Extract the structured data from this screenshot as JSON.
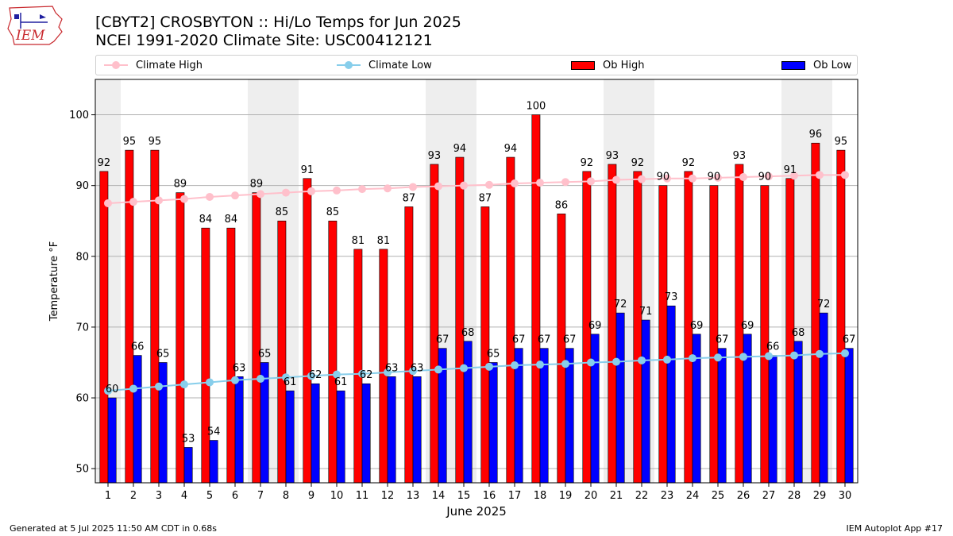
{
  "header": {
    "title_line1": "[CBYT2] CROSBYTON :: Hi/Lo Temps for Jun 2025",
    "title_line2": "NCEI 1991-2020 Climate Site: USC00412121"
  },
  "logo": {
    "text": "IEM",
    "icon": "iem-logo-icon"
  },
  "footer": {
    "left": "Generated at 5 Jul 2025 11:50 AM CDT in 0.68s",
    "right": "IEM Autoplot App #17"
  },
  "colors": {
    "ob_high": "#ff0000",
    "ob_low": "#0000ff",
    "climate_high": "#ffc0cb",
    "climate_low": "#87ceeb",
    "weekend_shade": "#eeeeee",
    "grid": "#b0b0b0"
  },
  "chart_data": {
    "type": "bar",
    "xlabel": "June 2025",
    "ylabel": "Temperature °F",
    "ylim": [
      48,
      105
    ],
    "yticks": [
      50,
      60,
      70,
      80,
      90,
      100
    ],
    "grid": "horizontal",
    "legend_placement": "top",
    "categories": [
      "1",
      "2",
      "3",
      "4",
      "5",
      "6",
      "7",
      "8",
      "9",
      "10",
      "11",
      "12",
      "13",
      "14",
      "15",
      "16",
      "17",
      "18",
      "19",
      "20",
      "21",
      "22",
      "23",
      "24",
      "25",
      "26",
      "27",
      "28",
      "29",
      "30"
    ],
    "shaded_days": [
      1,
      7,
      8,
      14,
      15,
      21,
      22,
      28,
      29
    ],
    "series": [
      {
        "name": "Ob High",
        "kind": "bar",
        "values": [
          92,
          95,
          95,
          89,
          84,
          84,
          89,
          85,
          91,
          85,
          81,
          81,
          87,
          93,
          94,
          87,
          94,
          100,
          86,
          92,
          93,
          92,
          90,
          92,
          90,
          93,
          90,
          91,
          96,
          95
        ]
      },
      {
        "name": "Ob Low",
        "kind": "bar",
        "values": [
          60,
          66,
          65,
          53,
          54,
          63,
          65,
          61,
          62,
          61,
          62,
          63,
          63,
          67,
          68,
          65,
          67,
          67,
          67,
          69,
          72,
          71,
          73,
          69,
          67,
          69,
          66,
          68,
          72,
          67
        ]
      },
      {
        "name": "Climate High",
        "kind": "line",
        "values": [
          87.5,
          87.7,
          87.9,
          88.1,
          88.4,
          88.6,
          88.8,
          89.0,
          89.2,
          89.3,
          89.5,
          89.6,
          89.8,
          89.9,
          90.0,
          90.1,
          90.3,
          90.4,
          90.5,
          90.6,
          90.8,
          90.9,
          91.0,
          91.0,
          91.1,
          91.2,
          91.3,
          91.4,
          91.5,
          91.5
        ]
      },
      {
        "name": "Climate Low",
        "kind": "line",
        "values": [
          61.0,
          61.3,
          61.6,
          61.9,
          62.2,
          62.5,
          62.7,
          62.9,
          63.1,
          63.3,
          63.4,
          63.6,
          63.8,
          64.0,
          64.2,
          64.4,
          64.6,
          64.7,
          64.8,
          65.0,
          65.1,
          65.3,
          65.4,
          65.6,
          65.7,
          65.8,
          65.9,
          66.0,
          66.2,
          66.3
        ]
      }
    ]
  }
}
